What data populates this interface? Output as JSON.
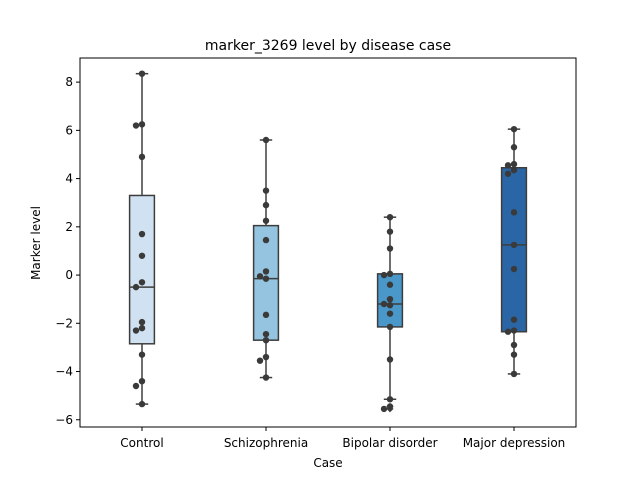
{
  "chart_data": {
    "type": "box",
    "title": "marker_3269 level by disease case",
    "xlabel": "Case",
    "ylabel": "Marker level",
    "ylim": [
      -6.3,
      9.0
    ],
    "yticks": [
      -6,
      -4,
      -2,
      0,
      2,
      4,
      6,
      8
    ],
    "grid": false,
    "categories": [
      "Control",
      "Schizophrenia",
      "Bipolar disorder",
      "Major depression"
    ],
    "colors": [
      "#d0e1f2",
      "#94c4df",
      "#4a98c9",
      "#2a66a6"
    ],
    "boxes": [
      {
        "min": -5.35,
        "q1": -2.85,
        "median": -0.5,
        "q3": 3.3,
        "max": 8.35
      },
      {
        "min": -4.25,
        "q1": -2.7,
        "median": -0.15,
        "q3": 2.05,
        "max": 5.6
      },
      {
        "min": -5.15,
        "q1": -2.15,
        "median": -1.2,
        "q3": 0.05,
        "max": 2.4
      },
      {
        "min": -4.1,
        "q1": -2.35,
        "median": 1.25,
        "q3": 4.45,
        "max": 6.05
      }
    ],
    "outliers": [
      [],
      [],
      [
        -5.45,
        -5.55
      ],
      []
    ],
    "points": [
      [
        8.35,
        6.25,
        6.2,
        4.9,
        1.7,
        0.8,
        -0.3,
        -0.5,
        -1.95,
        -2.2,
        -2.3,
        -3.3,
        -4.4,
        -4.6,
        -5.35
      ],
      [
        5.6,
        3.5,
        2.9,
        2.25,
        1.45,
        0.15,
        -0.05,
        -0.15,
        -1.65,
        -2.45,
        -2.7,
        -3.4,
        -3.55,
        -4.25
      ],
      [
        2.4,
        1.8,
        1.1,
        0.05,
        0.0,
        -0.4,
        -1.0,
        -1.2,
        -1.25,
        -1.6,
        -2.15,
        -3.5,
        -5.15,
        -5.45,
        -5.55
      ],
      [
        6.05,
        5.3,
        4.6,
        4.55,
        4.35,
        4.2,
        2.6,
        1.25,
        0.25,
        -1.85,
        -2.3,
        -2.35,
        -2.9,
        -3.3,
        -4.1
      ]
    ]
  }
}
